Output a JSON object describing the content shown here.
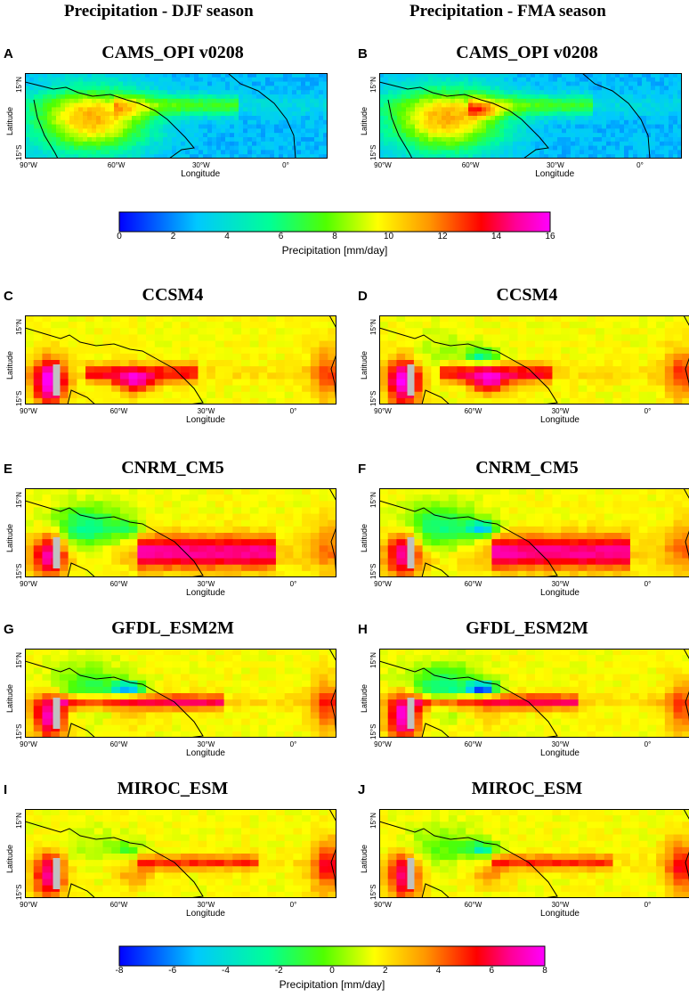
{
  "columns": {
    "left_title": "Precipitation - DJF season",
    "right_title": "Precipitation - FMA season"
  },
  "axes": {
    "ylabel": "Latitude",
    "xlabel": "Longitude",
    "lat_ticks": [
      "15°N",
      "15°S"
    ],
    "lon_ticks": [
      "90°W",
      "60°W",
      "30°W",
      "0°"
    ]
  },
  "panels": [
    {
      "letter": "A",
      "title": "CAMS_OPI v0208",
      "season": "DJF",
      "kind": "observed"
    },
    {
      "letter": "B",
      "title": "CAMS_OPI v0208",
      "season": "FMA",
      "kind": "observed"
    },
    {
      "letter": "C",
      "title": "CCSM4",
      "season": "DJF",
      "kind": "bias"
    },
    {
      "letter": "D",
      "title": "CCSM4",
      "season": "FMA",
      "kind": "bias"
    },
    {
      "letter": "E",
      "title": "CNRM_CM5",
      "season": "DJF",
      "kind": "bias"
    },
    {
      "letter": "F",
      "title": "CNRM_CM5",
      "season": "FMA",
      "kind": "bias"
    },
    {
      "letter": "G",
      "title": "GFDL_ESM2M",
      "season": "DJF",
      "kind": "bias"
    },
    {
      "letter": "H",
      "title": "GFDL_ESM2M",
      "season": "FMA",
      "kind": "bias"
    },
    {
      "letter": "I",
      "title": "MIROC_ESM",
      "season": "DJF",
      "kind": "bias"
    },
    {
      "letter": "J",
      "title": "MIROC_ESM",
      "season": "FMA",
      "kind": "bias"
    }
  ],
  "colorbars": [
    {
      "ticks": [
        "0",
        "2",
        "4",
        "6",
        "8",
        "10",
        "12",
        "14",
        "16"
      ],
      "label": "Precipitation [mm/day]"
    },
    {
      "ticks": [
        "-8",
        "-6",
        "-4",
        "-2",
        "0",
        "2",
        "4",
        "6",
        "8"
      ],
      "label": "Precipitation [mm/day]"
    }
  ],
  "colors": {
    "scale": [
      "#0000ff",
      "#00c8ff",
      "#00ff96",
      "#50ff00",
      "#ffff00",
      "#ff9600",
      "#ff0000",
      "#ff0096",
      "#ff00ff"
    ],
    "land_mask": "#c0c0c0",
    "coastline": "#000000"
  }
}
